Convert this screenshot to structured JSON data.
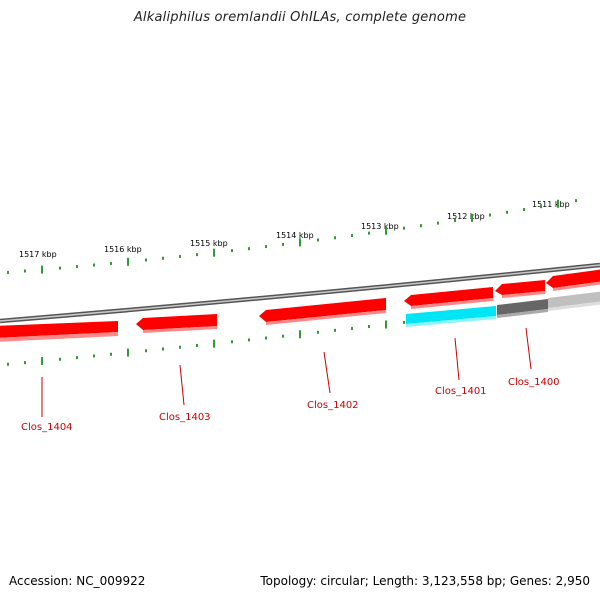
{
  "title": "Alkaliphilus oremlandii OhILAs, complete genome",
  "footer": {
    "accession": "Accession: NC_009922",
    "summary": "Topology: circular; Length: 3,123,558 bp; Genes: 2,950"
  },
  "colors": {
    "gene": "#ff0000",
    "gene_light": "#ff7777",
    "highlight": "#00e5f5",
    "ticks": "#339933",
    "backbone": "#888888",
    "label": "#cc0000"
  },
  "scale": {
    "kbp_labels": [
      "1517 kbp",
      "1516 kbp",
      "1515 kbp",
      "1514 kbp",
      "1513 kbp",
      "1512 kbp",
      "1511 kbp"
    ]
  },
  "genes": [
    {
      "label": "Clos_1404"
    },
    {
      "label": "Clos_1403"
    },
    {
      "label": "Clos_1402"
    },
    {
      "label": "Clos_1401"
    },
    {
      "label": "Clos_1400"
    }
  ]
}
